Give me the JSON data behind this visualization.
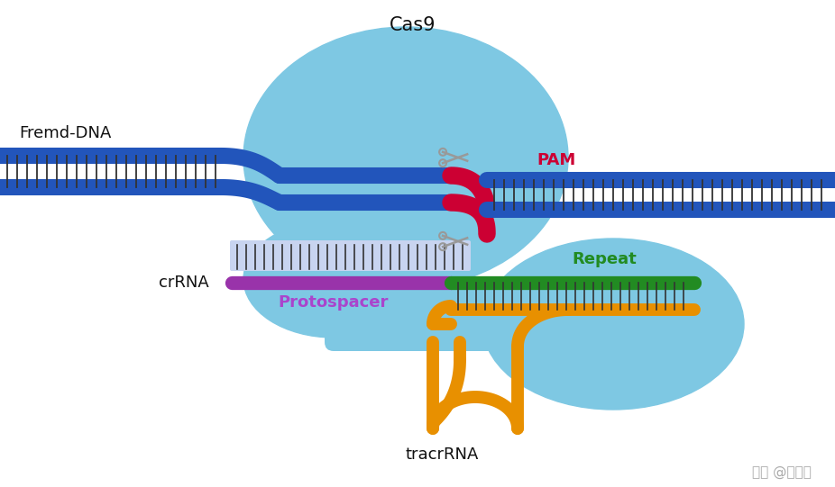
{
  "background_color": "#ffffff",
  "cas9_color": "#7EC8E3",
  "cas9_label": "Cas9",
  "dna_color": "#2255BB",
  "dna_label": "Fremd-DNA",
  "pam_color": "#CC0033",
  "pam_label": "PAM",
  "crRNA_color": "#9933AA",
  "crRNA_label": "crRNA",
  "protospacer_label": "Protospacer",
  "protospacer_text_color": "#AA44CC",
  "repeat_color": "#228B22",
  "repeat_label": "Repeat",
  "tracrRNA_color": "#E89000",
  "tracrRNA_label": "tracrRNA",
  "hybrid_color": "#C8D4F0",
  "tick_color": "#333333",
  "watermark": "知乎 @黄潮勇"
}
